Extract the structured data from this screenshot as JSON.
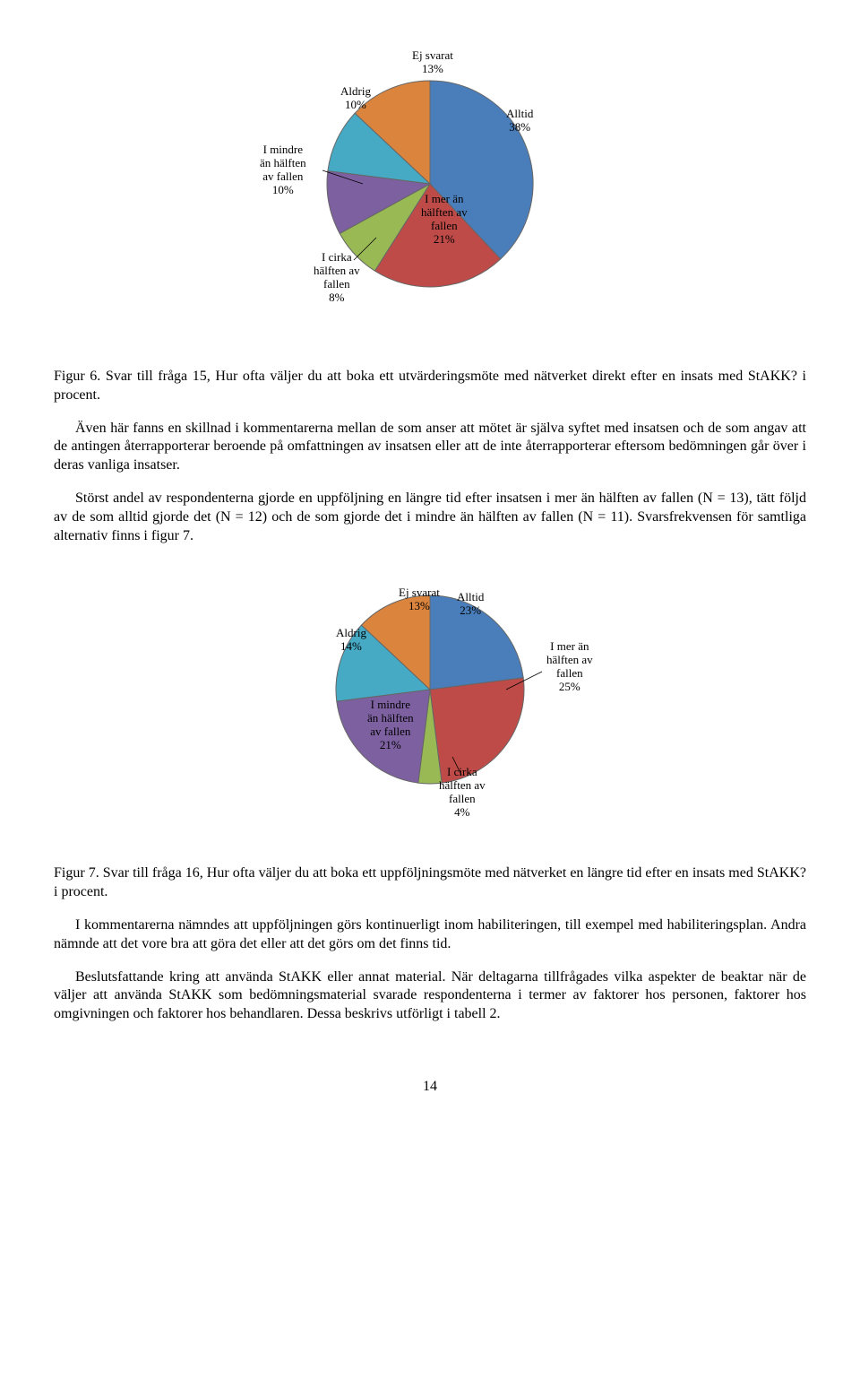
{
  "chart6": {
    "type": "pie",
    "diameter": 230,
    "border_color": "#666666",
    "border_width": 1,
    "slices": [
      {
        "key": "alltid",
        "label_line1": "Alltid",
        "label_line2": "38%",
        "value": 38,
        "color": "#4a7ebb"
      },
      {
        "key": "imer",
        "label_line1": "I mer än",
        "label_line2": "hälften av",
        "label_line3": "fallen",
        "label_line4": "21%",
        "value": 21,
        "color": "#be4b48"
      },
      {
        "key": "icirka",
        "label_line1": "I cirka",
        "label_line2": "hälften av",
        "label_line3": "fallen",
        "label_line4": "8%",
        "value": 8,
        "color": "#98b954"
      },
      {
        "key": "imindre",
        "label_line1": "I mindre",
        "label_line2": "än hälften",
        "label_line3": "av fallen",
        "label_line4": "10%",
        "value": 10,
        "color": "#7d60a0"
      },
      {
        "key": "aldrig",
        "label_line1": "Aldrig",
        "label_line2": "10%",
        "value": 10,
        "color": "#46aac5"
      },
      {
        "key": "ejsvarat",
        "label_line1": "Ej svarat",
        "label_line2": "13%",
        "value": 13,
        "color": "#db843d"
      }
    ]
  },
  "caption6": "Figur 6. Svar till fråga 15, Hur ofta väljer du att boka ett utvärderingsmöte med nätverket direkt efter en insats med StAKK? i procent.",
  "para6a": "Även här fanns en skillnad i kommentarerna mellan de som anser att mötet är själva syftet med insatsen och de som angav att de antingen återrapporterar beroende på omfattningen av insatsen eller att de inte återrapporterar eftersom bedömningen går över i deras vanliga insatser.",
  "para6b": "Störst andel av respondenterna gjorde en uppföljning en längre tid efter insatsen i mer än hälften av fallen (N = 13), tätt följd av de som alltid gjorde det (N = 12) och de som gjorde det i mindre än hälften av fallen (N = 11). Svarsfrekvensen för samtliga alternativ finns i figur 7.",
  "chart7": {
    "type": "pie",
    "diameter": 210,
    "border_color": "#666666",
    "border_width": 1,
    "slices": [
      {
        "key": "alltid",
        "label_line1": "Alltid",
        "label_line2": "23%",
        "value": 23,
        "color": "#4a7ebb"
      },
      {
        "key": "imer",
        "label_line1": "I mer än",
        "label_line2": "hälften av",
        "label_line3": "fallen",
        "label_line4": "25%",
        "value": 25,
        "color": "#be4b48"
      },
      {
        "key": "icirka",
        "label_line1": "I cirka",
        "label_line2": "hälften av",
        "label_line3": "fallen",
        "label_line4": "4%",
        "value": 4,
        "color": "#98b954"
      },
      {
        "key": "imindre",
        "label_line1": "I mindre",
        "label_line2": "än hälften",
        "label_line3": "av fallen",
        "label_line4": "21%",
        "value": 21,
        "color": "#7d60a0"
      },
      {
        "key": "aldrig",
        "label_line1": "Aldrig",
        "label_line2": "14%",
        "value": 14,
        "color": "#46aac5"
      },
      {
        "key": "ejsvarat",
        "label_line1": "Ej svarat",
        "label_line2": "13%",
        "value": 13,
        "color": "#db843d"
      }
    ]
  },
  "caption7": "Figur 7. Svar till fråga 16, Hur ofta väljer du att boka ett uppföljningsmöte med nätverket en längre tid efter en insats med StAKK? i procent.",
  "para7a": "I kommentarerna nämndes att uppföljningen görs kontinuerligt inom habiliteringen, till exempel med habiliteringsplan. Andra nämnde att det vore bra att göra det eller att det görs om det finns tid.",
  "para7b": "Beslutsfattande kring att använda StAKK eller annat material. När deltagarna tillfrågades vilka aspekter de beaktar när de väljer att använda StAKK som bedömningsmaterial svarade respondenterna i termer av faktorer hos personen, faktorer hos omgivningen och faktorer hos behandlaren. Dessa beskrivs utförligt i tabell 2.",
  "page_number": "14"
}
